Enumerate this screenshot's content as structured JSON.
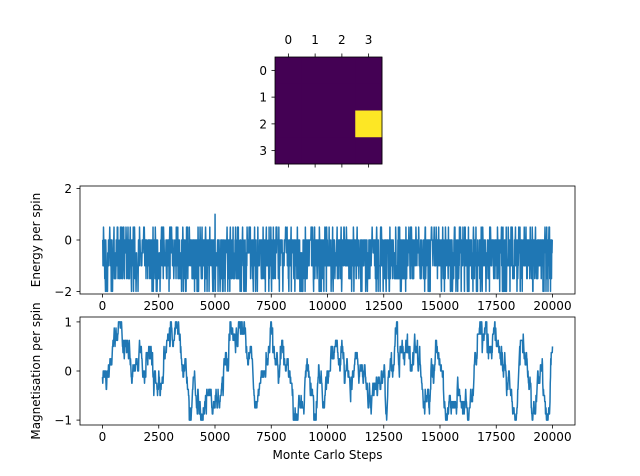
{
  "chart_data": [
    {
      "type": "heatmap",
      "title": "",
      "rows": 4,
      "cols": 4,
      "x_ticks": [
        "0",
        "1",
        "2",
        "3"
      ],
      "y_ticks": [
        "0",
        "1",
        "2",
        "3"
      ],
      "values": [
        [
          0,
          0,
          0,
          0
        ],
        [
          0,
          0,
          0,
          0
        ],
        [
          0,
          0,
          0,
          1
        ],
        [
          0,
          0,
          0,
          0
        ]
      ],
      "colormap": {
        "low": "#440154",
        "high": "#fde725"
      }
    },
    {
      "type": "line",
      "xlabel": "",
      "ylabel": "Energy per spin",
      "xlim": [
        -1000,
        21000
      ],
      "ylim": [
        -2.1,
        2.1
      ],
      "x_ticks": [
        0,
        2500,
        5000,
        7500,
        10000,
        12500,
        15000,
        17500,
        20000
      ],
      "y_ticks": [
        -2,
        0,
        2
      ],
      "color": "#1f77b4",
      "series": [
        {
          "x_start": 0,
          "x_end": 20000,
          "levels": [
            -2,
            -1.5,
            -1,
            -0.5,
            0,
            0.5,
            1
          ],
          "typical_range": [
            -2,
            0.5
          ],
          "max_observed": 1,
          "max_observed_at": 5000
        }
      ]
    },
    {
      "type": "line",
      "xlabel": "Monte Carlo Steps",
      "ylabel": "Magnetisation per spin",
      "xlim": [
        -1000,
        21000
      ],
      "ylim": [
        -1.1,
        1.1
      ],
      "x_ticks": [
        0,
        2500,
        5000,
        7500,
        10000,
        12500,
        15000,
        17500,
        20000
      ],
      "y_ticks": [
        -1,
        0,
        1
      ],
      "color": "#1f77b4",
      "series": [
        {
          "x_start": 0,
          "x_end": 20000,
          "step": 0.125,
          "range": [
            -1,
            1
          ]
        }
      ]
    }
  ]
}
